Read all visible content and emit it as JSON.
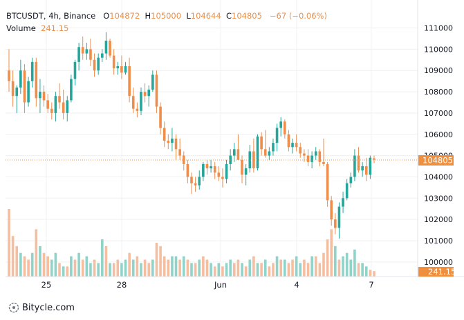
{
  "header": {
    "symbol": "BTCUSDT",
    "interval": "4h",
    "exchange": "Binance",
    "open_label": "O",
    "open": "104872",
    "high_label": "H",
    "high": "105000",
    "low_label": "L",
    "low": "104644",
    "close_label": "C",
    "close": "104805",
    "change": "−67 (−0.06%)",
    "volume_label": "Volume",
    "volume": "241.15"
  },
  "footer": {
    "brand": "Bitycle.com",
    "icon": "bitycle-logo-icon"
  },
  "price_axis": {
    "ticks": [
      "111000",
      "110000",
      "109000",
      "108000",
      "107000",
      "106000",
      "105000",
      "104000",
      "103000",
      "102000",
      "101000",
      "100000"
    ]
  },
  "last_price_label": "104805",
  "last_volume_label": "241.15",
  "time_axis": {
    "labels": [
      "25",
      "28",
      "Jun",
      "4",
      "7"
    ]
  },
  "colors": {
    "up": "#26a69a",
    "down": "#ef8d4b",
    "last_price": "#f0903f",
    "vol_up": "#8fd3c9",
    "vol_down": "#f6bea0",
    "grid": "#f0f0f0"
  },
  "chart_data": {
    "type": "candlestick",
    "ylim": [
      99500,
      111300
    ],
    "grid": true,
    "candles": [
      [
        109000,
        110000,
        108000,
        108500
      ],
      [
        108500,
        109000,
        107300,
        107800
      ],
      [
        107800,
        108300,
        107000,
        108200
      ],
      [
        108200,
        109500,
        107900,
        109000
      ],
      [
        109000,
        109300,
        107000,
        107500
      ],
      [
        107500,
        108700,
        107300,
        108500
      ],
      [
        108500,
        109600,
        108200,
        109400
      ],
      [
        109400,
        109600,
        107300,
        107700
      ],
      [
        107700,
        108600,
        107000,
        108000
      ],
      [
        108000,
        108300,
        107300,
        107600
      ],
      [
        107600,
        107900,
        107000,
        107200
      ],
      [
        107200,
        107500,
        106700,
        107000
      ],
      [
        107000,
        108000,
        106600,
        107800
      ],
      [
        107800,
        108400,
        107200,
        107500
      ],
      [
        107500,
        108100,
        106700,
        107000
      ],
      [
        107000,
        107800,
        106600,
        107600
      ],
      [
        107600,
        108800,
        107500,
        108600
      ],
      [
        108600,
        109500,
        108300,
        109400
      ],
      [
        109400,
        110300,
        109000,
        110100
      ],
      [
        110100,
        110600,
        109500,
        109800
      ],
      [
        109800,
        110300,
        109500,
        110000
      ],
      [
        110000,
        110500,
        109200,
        109500
      ],
      [
        109500,
        109800,
        108700,
        109000
      ],
      [
        109000,
        109800,
        108800,
        109600
      ],
      [
        109600,
        110000,
        109400,
        109800
      ],
      [
        109800,
        110800,
        109500,
        110400
      ],
      [
        110400,
        110500,
        109600,
        109700
      ],
      [
        109700,
        110000,
        108800,
        109100
      ],
      [
        109100,
        109400,
        108800,
        109200
      ],
      [
        109200,
        109700,
        108600,
        108900
      ],
      [
        108900,
        109400,
        108800,
        109200
      ],
      [
        109200,
        109600,
        107500,
        107800
      ],
      [
        107800,
        108200,
        107000,
        107200
      ],
      [
        107200,
        107500,
        106800,
        107100
      ],
      [
        107100,
        108200,
        106900,
        108000
      ],
      [
        108000,
        108400,
        107500,
        107800
      ],
      [
        107800,
        108300,
        107300,
        108100
      ],
      [
        108100,
        109000,
        108000,
        108800
      ],
      [
        108800,
        109000,
        107000,
        107300
      ],
      [
        107300,
        107500,
        106000,
        106300
      ],
      [
        106300,
        106600,
        105400,
        105700
      ],
      [
        105700,
        106000,
        105300,
        105600
      ],
      [
        105600,
        106300,
        105200,
        105800
      ],
      [
        105800,
        106000,
        104800,
        105300
      ],
      [
        105300,
        105800,
        104800,
        105000
      ],
      [
        105000,
        105200,
        104300,
        104600
      ],
      [
        104600,
        104800,
        103700,
        104000
      ],
      [
        104000,
        104200,
        103200,
        103700
      ],
      [
        103700,
        104000,
        103300,
        103600
      ],
      [
        103600,
        104300,
        103400,
        104000
      ],
      [
        104000,
        104700,
        103800,
        104600
      ],
      [
        104600,
        104800,
        104100,
        104400
      ],
      [
        104400,
        104800,
        104200,
        104500
      ],
      [
        104500,
        104700,
        103900,
        104200
      ],
      [
        104200,
        104500,
        103800,
        104000
      ],
      [
        104000,
        104400,
        103500,
        103900
      ],
      [
        103900,
        104800,
        103700,
        104600
      ],
      [
        104600,
        105300,
        104300,
        105000
      ],
      [
        105000,
        105600,
        104700,
        105300
      ],
      [
        105300,
        106000,
        104900,
        104800
      ],
      [
        104800,
        105000,
        103700,
        104100
      ],
      [
        104100,
        104600,
        103600,
        104400
      ],
      [
        104400,
        105500,
        104200,
        105200
      ],
      [
        105200,
        105800,
        104200,
        104400
      ],
      [
        104400,
        106000,
        104300,
        105900
      ],
      [
        105900,
        106100,
        105000,
        105300
      ],
      [
        105300,
        106200,
        104900,
        105000
      ],
      [
        105000,
        105400,
        104800,
        105200
      ],
      [
        105200,
        105800,
        105000,
        105600
      ],
      [
        105600,
        106500,
        105200,
        106300
      ],
      [
        106300,
        106800,
        105900,
        106600
      ],
      [
        106600,
        106700,
        105800,
        106000
      ],
      [
        106000,
        106200,
        105200,
        105400
      ],
      [
        105400,
        105800,
        105100,
        105600
      ],
      [
        105600,
        106000,
        105200,
        105400
      ],
      [
        105400,
        105600,
        104900,
        105100
      ],
      [
        105100,
        105300,
        104700,
        105000
      ],
      [
        105000,
        105300,
        104500,
        104700
      ],
      [
        104700,
        105200,
        104400,
        105000
      ],
      [
        105000,
        105400,
        104800,
        105200
      ],
      [
        105200,
        105300,
        104500,
        104700
      ],
      [
        104700,
        105800,
        104500,
        104600
      ],
      [
        104600,
        104700,
        102600,
        102900
      ],
      [
        102900,
        103100,
        101700,
        102000
      ],
      [
        102000,
        102300,
        101300,
        101600
      ],
      [
        101600,
        102800,
        101100,
        102600
      ],
      [
        102600,
        103300,
        102300,
        103000
      ],
      [
        103000,
        103900,
        102900,
        103700
      ],
      [
        103700,
        104200,
        103500,
        104000
      ],
      [
        104000,
        105300,
        103800,
        105000
      ],
      [
        105000,
        105400,
        104200,
        104300
      ],
      [
        104300,
        104700,
        104000,
        104500
      ],
      [
        104500,
        104900,
        103800,
        104100
      ],
      [
        104100,
        105000,
        103900,
        104900
      ],
      [
        104872,
        105000,
        104644,
        104805
      ]
    ],
    "volume": [
      [
        1.0,
        0
      ],
      [
        0.6,
        0
      ],
      [
        0.45,
        0
      ],
      [
        0.35,
        1
      ],
      [
        0.3,
        0
      ],
      [
        0.25,
        0
      ],
      [
        0.35,
        1
      ],
      [
        0.7,
        0
      ],
      [
        0.45,
        1
      ],
      [
        0.35,
        0
      ],
      [
        0.3,
        0
      ],
      [
        0.25,
        1
      ],
      [
        0.35,
        1
      ],
      [
        0.2,
        0
      ],
      [
        0.15,
        1
      ],
      [
        0.15,
        0
      ],
      [
        0.3,
        1
      ],
      [
        0.25,
        0
      ],
      [
        0.35,
        1
      ],
      [
        0.25,
        0
      ],
      [
        0.3,
        1
      ],
      [
        0.2,
        1
      ],
      [
        0.25,
        0
      ],
      [
        0.2,
        1
      ],
      [
        0.55,
        1
      ],
      [
        0.45,
        0
      ],
      [
        0.2,
        1
      ],
      [
        0.2,
        0
      ],
      [
        0.25,
        0
      ],
      [
        0.2,
        1
      ],
      [
        0.25,
        1
      ],
      [
        0.35,
        0
      ],
      [
        0.25,
        1
      ],
      [
        0.3,
        0
      ],
      [
        0.2,
        1
      ],
      [
        0.25,
        0
      ],
      [
        0.2,
        0
      ],
      [
        0.25,
        1
      ],
      [
        0.5,
        0
      ],
      [
        0.45,
        0
      ],
      [
        0.3,
        0
      ],
      [
        0.25,
        0
      ],
      [
        0.3,
        1
      ],
      [
        0.3,
        1
      ],
      [
        0.25,
        0
      ],
      [
        0.3,
        1
      ],
      [
        0.25,
        0
      ],
      [
        0.2,
        1
      ],
      [
        0.2,
        0
      ],
      [
        0.25,
        1
      ],
      [
        0.3,
        0
      ],
      [
        0.25,
        0
      ],
      [
        0.2,
        1
      ],
      [
        0.15,
        0
      ],
      [
        0.2,
        1
      ],
      [
        0.15,
        0
      ],
      [
        0.2,
        1
      ],
      [
        0.25,
        1
      ],
      [
        0.2,
        0
      ],
      [
        0.25,
        0
      ],
      [
        0.2,
        1
      ],
      [
        0.15,
        0
      ],
      [
        0.25,
        1
      ],
      [
        0.3,
        0
      ],
      [
        0.2,
        1
      ],
      [
        0.2,
        0
      ],
      [
        0.25,
        1
      ],
      [
        0.15,
        0
      ],
      [
        0.2,
        0
      ],
      [
        0.3,
        1
      ],
      [
        0.25,
        0
      ],
      [
        0.25,
        1
      ],
      [
        0.2,
        0
      ],
      [
        0.25,
        0
      ],
      [
        0.3,
        1
      ],
      [
        0.2,
        1
      ],
      [
        0.25,
        0
      ],
      [
        0.2,
        0
      ],
      [
        0.3,
        1
      ],
      [
        0.3,
        0
      ],
      [
        0.2,
        0
      ],
      [
        0.35,
        0
      ],
      [
        0.55,
        0
      ],
      [
        0.7,
        0
      ],
      [
        0.45,
        1
      ],
      [
        0.25,
        0
      ],
      [
        0.3,
        1
      ],
      [
        0.35,
        1
      ],
      [
        0.25,
        1
      ],
      [
        0.4,
        1
      ],
      [
        0.2,
        0
      ],
      [
        0.2,
        1
      ],
      [
        0.15,
        1
      ],
      [
        0.1,
        0
      ],
      [
        0.08,
        0
      ]
    ]
  }
}
